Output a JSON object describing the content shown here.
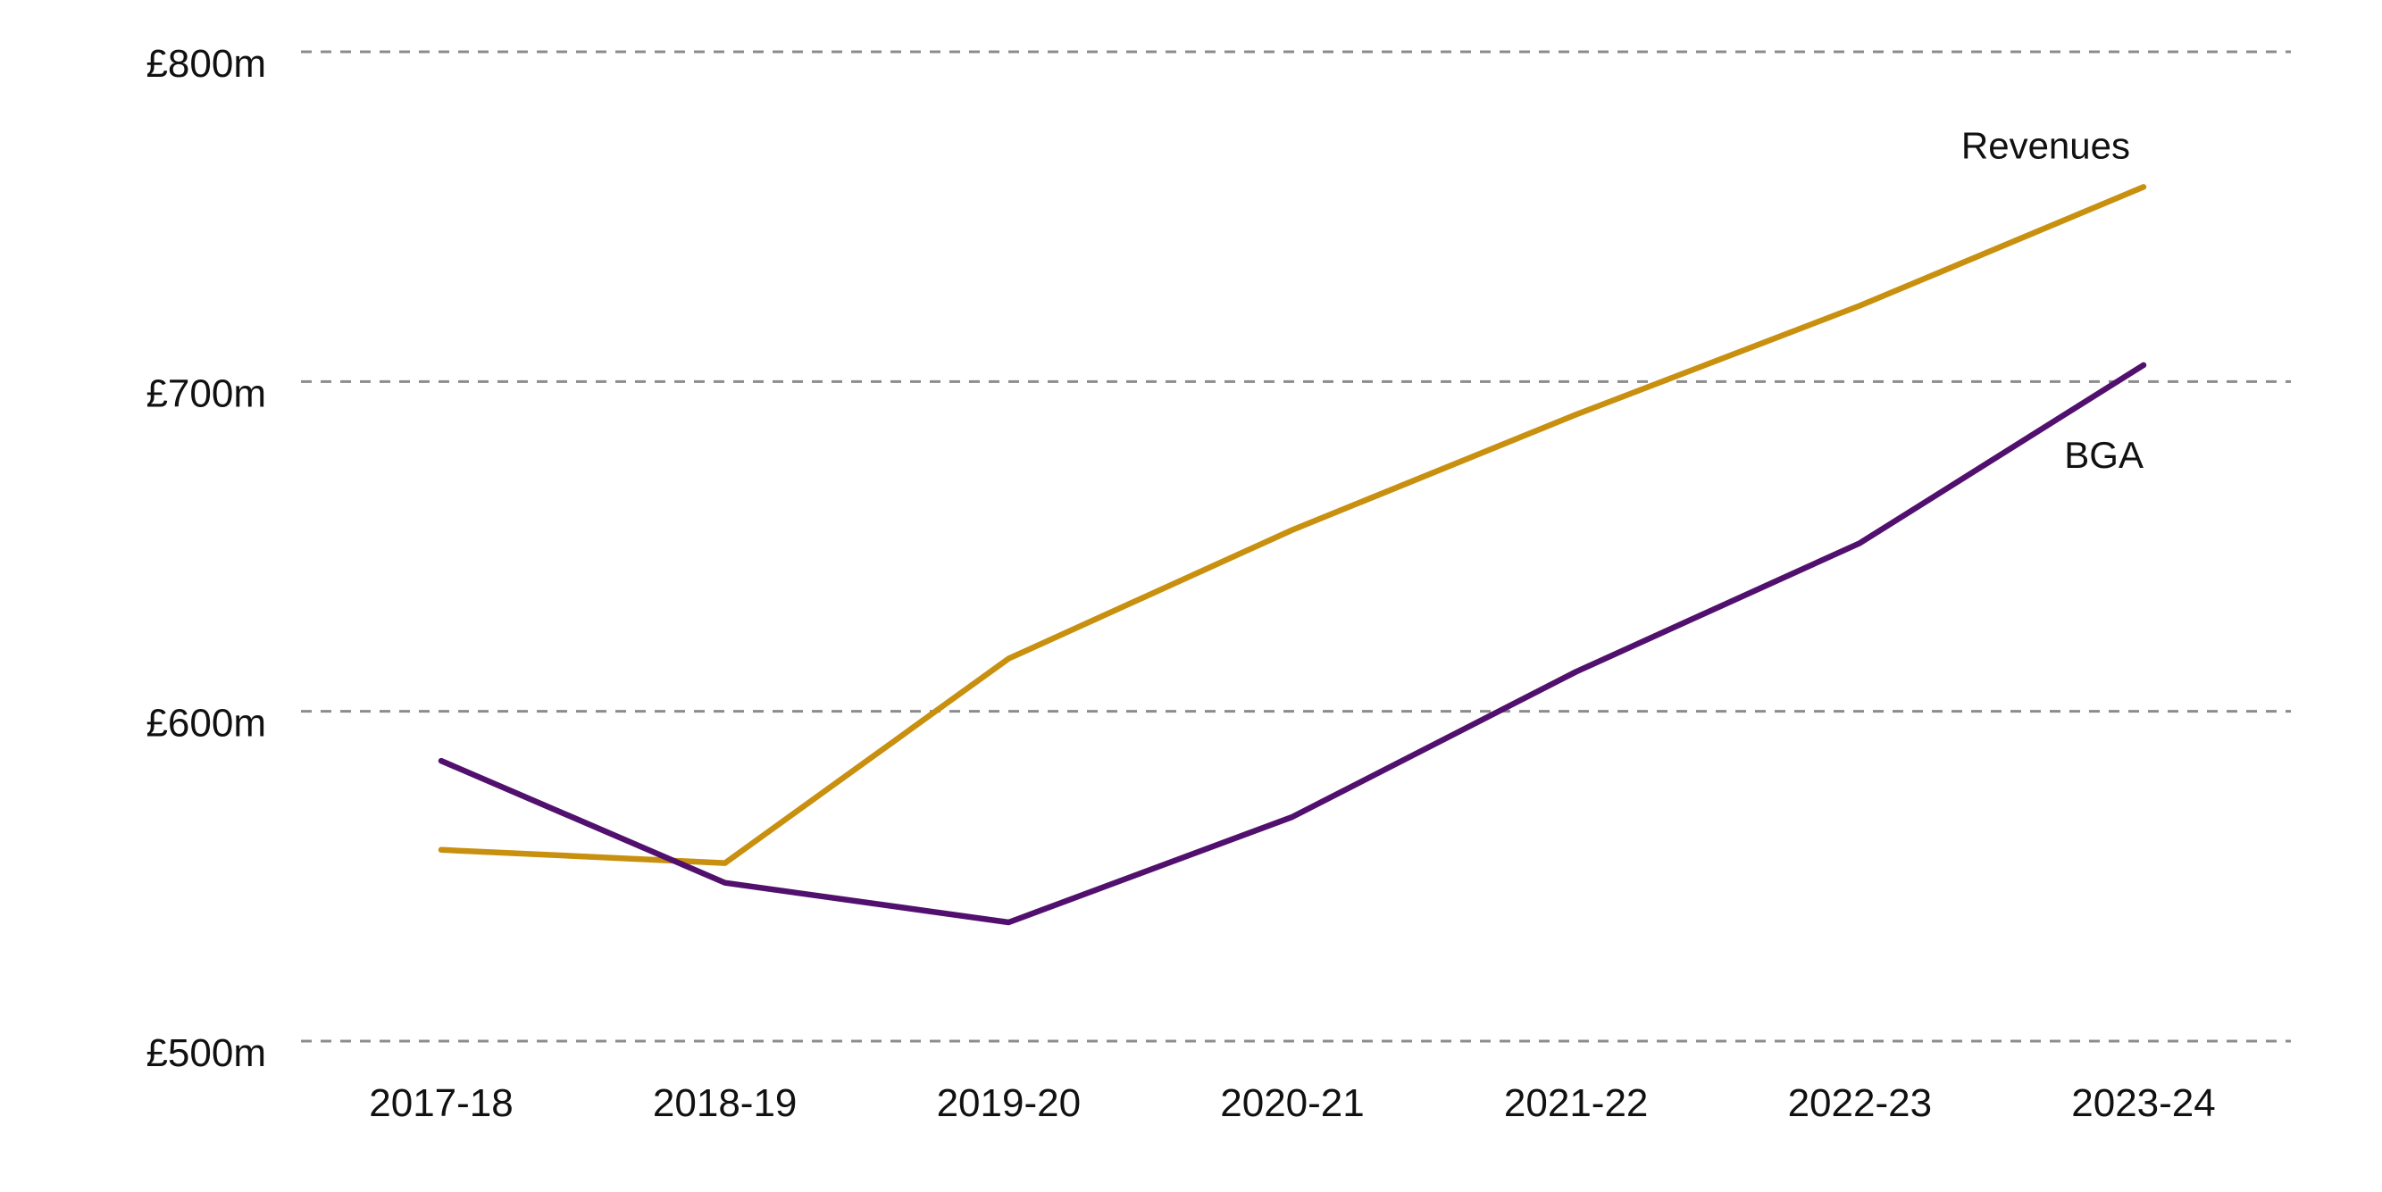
{
  "chart_data": {
    "type": "line",
    "title": "",
    "xlabel": "",
    "ylabel": "",
    "categories": [
      "2017-18",
      "2018-19",
      "2019-20",
      "2020-21",
      "2021-22",
      "2022-23",
      "2023-24"
    ],
    "ylim": [
      500,
      800
    ],
    "y_ticks": [
      {
        "value": 500,
        "label": "£500m"
      },
      {
        "value": 600,
        "label": "£600m"
      },
      {
        "value": 700,
        "label": "£700m"
      },
      {
        "value": 800,
        "label": "£800m"
      }
    ],
    "grid": true,
    "grid_style": "dashed",
    "legend": "inline-labels",
    "series": [
      {
        "name": "Revenues",
        "color": "#C8900E",
        "values": [
          558,
          554,
          616,
          655,
          690,
          723,
          759
        ]
      },
      {
        "name": "BGA",
        "color": "#52106E",
        "values": [
          585,
          548,
          536,
          568,
          612,
          651,
          705
        ]
      }
    ]
  }
}
